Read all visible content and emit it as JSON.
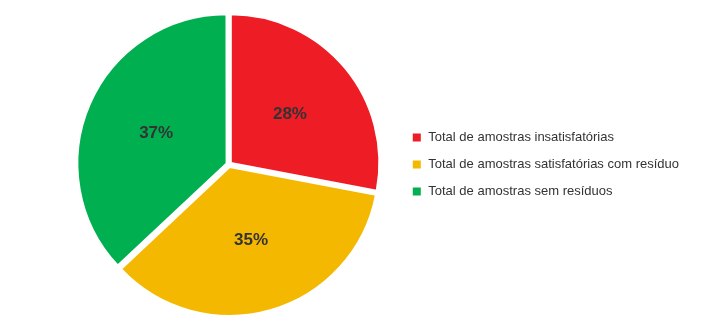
{
  "chart_data": {
    "type": "pie",
    "categories": [
      "Total de amostras insatisfatórias",
      "Total de amostras satisfatórias com resíduo",
      "Total de amostras sem resíduos"
    ],
    "values": [
      28,
      35,
      37
    ],
    "value_labels": [
      "28%",
      "35%",
      "37%"
    ],
    "colors": [
      "#ee1c25",
      "#f5b800",
      "#00b050"
    ],
    "data_labels": true,
    "legend": "right"
  }
}
